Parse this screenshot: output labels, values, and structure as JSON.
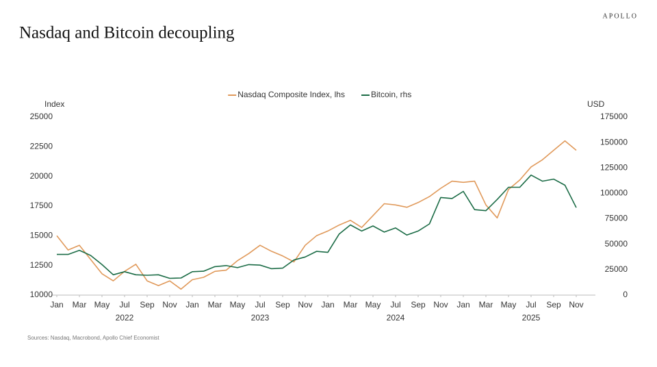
{
  "brand": "APOLLO",
  "source": "Sources: Nasdaq, Macrobond, Apollo Chief Economist",
  "chart_data": {
    "type": "line",
    "title": "Nasdaq and Bitcoin decoupling",
    "ylabel": "Index",
    "y2label": "USD",
    "x": [
      "2022-01",
      "2022-02",
      "2022-03",
      "2022-04",
      "2022-05",
      "2022-06",
      "2022-07",
      "2022-08",
      "2022-09",
      "2022-10",
      "2022-11",
      "2022-12",
      "2023-01",
      "2023-02",
      "2023-03",
      "2023-04",
      "2023-05",
      "2023-06",
      "2023-07",
      "2023-08",
      "2023-09",
      "2023-10",
      "2023-11",
      "2023-12",
      "2024-01",
      "2024-02",
      "2024-03",
      "2024-04",
      "2024-05",
      "2024-06",
      "2024-07",
      "2024-08",
      "2024-09",
      "2024-10",
      "2024-11",
      "2024-12",
      "2025-01",
      "2025-02",
      "2025-03",
      "2025-04",
      "2025-05",
      "2025-06",
      "2025-07",
      "2025-08",
      "2025-09",
      "2025-10",
      "2025-11"
    ],
    "xticks": [
      {
        "value": "2022-01",
        "label": "Jan"
      },
      {
        "value": "2022-03",
        "label": "Mar"
      },
      {
        "value": "2022-05",
        "label": "May"
      },
      {
        "value": "2022-07",
        "label": "Jul"
      },
      {
        "value": "2022-09",
        "label": "Sep"
      },
      {
        "value": "2022-11",
        "label": "Nov"
      },
      {
        "value": "2023-01",
        "label": "Jan"
      },
      {
        "value": "2023-03",
        "label": "Mar"
      },
      {
        "value": "2023-05",
        "label": "May"
      },
      {
        "value": "2023-07",
        "label": "Jul"
      },
      {
        "value": "2023-09",
        "label": "Sep"
      },
      {
        "value": "2023-11",
        "label": "Nov"
      },
      {
        "value": "2024-01",
        "label": "Jan"
      },
      {
        "value": "2024-03",
        "label": "Mar"
      },
      {
        "value": "2024-05",
        "label": "May"
      },
      {
        "value": "2024-07",
        "label": "Jul"
      },
      {
        "value": "2024-09",
        "label": "Sep"
      },
      {
        "value": "2024-11",
        "label": "Nov"
      },
      {
        "value": "2025-01",
        "label": "Jan"
      },
      {
        "value": "2025-03",
        "label": "Mar"
      },
      {
        "value": "2025-05",
        "label": "May"
      },
      {
        "value": "2025-07",
        "label": "Jul"
      },
      {
        "value": "2025-09",
        "label": "Sep"
      },
      {
        "value": "2025-11",
        "label": "Nov"
      }
    ],
    "year_labels": [
      {
        "value": "2022-07",
        "label": "2022"
      },
      {
        "value": "2023-07",
        "label": "2023"
      },
      {
        "value": "2024-07",
        "label": "2024"
      },
      {
        "value": "2025-07",
        "label": "2025"
      }
    ],
    "ylim": [
      10000,
      25000
    ],
    "yticks": [
      10000,
      12500,
      15000,
      17500,
      20000,
      22500,
      25000
    ],
    "y2lim": [
      0,
      175000
    ],
    "y2ticks": [
      0,
      25000,
      50000,
      75000,
      100000,
      125000,
      150000,
      175000
    ],
    "legend": "top",
    "series": [
      {
        "name": "Nasdaq Composite Index, lhs",
        "color": "#e0995a",
        "values": [
          15000,
          13800,
          14200,
          13000,
          11800,
          11200,
          12000,
          12600,
          11200,
          10800,
          11200,
          10500,
          11300,
          11500,
          12000,
          12100,
          12900,
          13500,
          14200,
          13700,
          13300,
          12800,
          14200,
          15000,
          15400,
          15900,
          16300,
          15700,
          16700,
          17700,
          17600,
          17400,
          17800,
          18300,
          19000,
          19600,
          19500,
          19600,
          17600,
          16500,
          18900,
          19700,
          20800,
          21400,
          22200,
          23000,
          22200
        ]
      },
      {
        "name": "Bitcoin, rhs",
        "color": "#1a6b45",
        "axis": "y2",
        "values": [
          40000,
          40000,
          44000,
          39000,
          30000,
          20000,
          23000,
          20000,
          19500,
          20000,
          16500,
          16800,
          23000,
          23500,
          28000,
          29000,
          27000,
          30000,
          29500,
          26000,
          26500,
          34500,
          37500,
          43000,
          42000,
          60000,
          69000,
          63000,
          68000,
          62000,
          66000,
          59000,
          63000,
          70000,
          96000,
          95000,
          102000,
          84000,
          83000,
          94000,
          106000,
          106000,
          118000,
          112000,
          114000,
          108000,
          86000
        ]
      }
    ]
  }
}
